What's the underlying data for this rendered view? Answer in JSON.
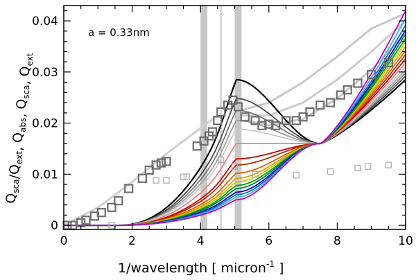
{
  "chart_data": {
    "type": "line",
    "title": "",
    "xlabel_main": "1/wavelength [ micron",
    "xlabel_sup": "-1",
    "xlabel_tail": " ]",
    "ylabel": "Q_sca/Q_ext, Q_abs, Q_sca, Q_ext",
    "ylabel_parts": [
      {
        "base": "Q",
        "sub": "sca"
      },
      {
        "text": "/"
      },
      {
        "base": "Q",
        "sub": "ext"
      },
      {
        "text": ",  "
      },
      {
        "base": "Q",
        "sub": "abs"
      },
      {
        "text": ",  "
      },
      {
        "base": "Q",
        "sub": "sca"
      },
      {
        "text": ",  "
      },
      {
        "base": "Q",
        "sub": "ext"
      }
    ],
    "annotation": "a = 0.33nm",
    "xlim": [
      0,
      10
    ],
    "ylim": [
      -0.0008,
      0.043
    ],
    "x_ticks": [
      0,
      2,
      4,
      6,
      8,
      10
    ],
    "x_tick_labels": [
      "0",
      "2",
      "4",
      "6",
      "8",
      "10"
    ],
    "y_ticks": [
      0,
      0.01,
      0.02,
      0.03,
      0.04
    ],
    "y_tick_labels": [
      "0",
      "0.01",
      "0.02",
      "0.03",
      "0.04"
    ],
    "x_minor_step": 0.5,
    "y_minor_step": 0.002,
    "grid": false,
    "legend": "none",
    "vertical_bands": [
      {
        "x0": 4.0,
        "x1": 4.2,
        "color": "#c8c8c8"
      },
      {
        "x0": 5.0,
        "x1": 5.2,
        "color": "#c8c8c8"
      }
    ],
    "vertical_lines": [
      {
        "x": 4.6,
        "color": "#b4b4b4"
      }
    ],
    "background_curves": [
      {
        "color": "#c8c8c8",
        "width": 3,
        "points": [
          [
            5.2,
            0.0225
          ],
          [
            6,
            0.024
          ],
          [
            7,
            0.028
          ],
          [
            8,
            0.033
          ],
          [
            9,
            0.0385
          ],
          [
            10,
            0.0415
          ]
        ]
      },
      {
        "color": "#cccccc",
        "width": 3,
        "points": [
          [
            5.2,
            0.0215
          ],
          [
            6,
            0.0215
          ],
          [
            7,
            0.024
          ],
          [
            8,
            0.0285
          ],
          [
            9,
            0.034
          ],
          [
            10,
            0.04
          ]
        ]
      },
      {
        "color": "#c8c8c8",
        "width": 3,
        "points": [
          [
            5.3,
            0.0205
          ],
          [
            6,
            0.0196
          ],
          [
            7,
            0.0208
          ],
          [
            8,
            0.0248
          ],
          [
            9,
            0.0305
          ],
          [
            10,
            0.0375
          ]
        ]
      },
      {
        "color": "#d0d0d0",
        "width": 3,
        "points": [
          [
            0,
            0
          ],
          [
            1,
            0.0035
          ],
          [
            2,
            0.0085
          ],
          [
            3,
            0.014
          ],
          [
            4,
            0.019
          ],
          [
            4.5,
            0.0215
          ]
        ]
      }
    ],
    "series_colors": [
      "#000000",
      "#4a4a4a",
      "#787878",
      "#a0a0a0",
      "#c8c8c8",
      "#f08080",
      "#cc0000",
      "#b03000",
      "#e06000",
      "#e0a000",
      "#c8c800",
      "#00a000",
      "#008040",
      "#0000cc",
      "#0070c0",
      "#40b0e0",
      "#c000c0"
    ],
    "series": [
      {
        "peak": 0.0285,
        "hi": 0.0285,
        "lowc": 0.01
      },
      {
        "peak": 0.0248,
        "hi": 0.0292,
        "lowc": 0.02
      },
      {
        "peak": 0.0225,
        "hi": 0.0298,
        "lowc": 0.03
      },
      {
        "peak": 0.0205,
        "hi": 0.0304,
        "lowc": 0.04
      },
      {
        "peak": 0.0188,
        "hi": 0.031,
        "lowc": 0.05
      },
      {
        "peak": 0.016,
        "hi": 0.0318,
        "lowc": 0.06
      },
      {
        "peak": 0.013,
        "hi": 0.0326,
        "lowc": 0.08
      },
      {
        "peak": 0.0118,
        "hi": 0.0334,
        "lowc": 0.1
      },
      {
        "peak": 0.0102,
        "hi": 0.0342,
        "lowc": 0.12
      },
      {
        "peak": 0.0092,
        "hi": 0.035,
        "lowc": 0.14
      },
      {
        "peak": 0.0085,
        "hi": 0.0358,
        "lowc": 0.16
      },
      {
        "peak": 0.0078,
        "hi": 0.0366,
        "lowc": 0.18
      },
      {
        "peak": 0.0072,
        "hi": 0.0374,
        "lowc": 0.2
      },
      {
        "peak": 0.0065,
        "hi": 0.0382,
        "lowc": 0.22
      },
      {
        "peak": 0.006,
        "hi": 0.0392,
        "lowc": 0.24
      },
      {
        "peak": 0.0055,
        "hi": 0.0405,
        "lowc": 0.26
      },
      {
        "peak": 0.005,
        "hi": 0.042,
        "lowc": 0.28
      }
    ],
    "observed_points_dark": [
      [
        0.1,
        0
      ],
      [
        0.25,
        0
      ],
      [
        0.5,
        0.0005
      ],
      [
        0.65,
        0.001
      ],
      [
        0.9,
        0.0018
      ],
      [
        1.1,
        0.0025
      ],
      [
        1.4,
        0.0035
      ],
      [
        1.6,
        0.0048
      ],
      [
        1.9,
        0.0072
      ],
      [
        2.3,
        0.0092
      ],
      [
        2.5,
        0.0108
      ],
      [
        2.7,
        0.0118
      ],
      [
        2.85,
        0.0122
      ],
      [
        3.0,
        0.0125
      ],
      [
        3.9,
        0.0155
      ],
      [
        4.1,
        0.0165
      ],
      [
        4.25,
        0.0175
      ],
      [
        4.35,
        0.0183
      ],
      [
        4.5,
        0.0205
      ],
      [
        4.6,
        0.0222
      ],
      [
        4.8,
        0.0235
      ],
      [
        4.95,
        0.0245
      ],
      [
        5.1,
        0.0232
      ],
      [
        5.3,
        0.0212
      ],
      [
        5.6,
        0.0205
      ],
      [
        5.8,
        0.0195
      ],
      [
        6.0,
        0.0198
      ],
      [
        6.2,
        0.0195
      ],
      [
        6.5,
        0.0205
      ],
      [
        6.8,
        0.0205
      ],
      [
        7.0,
        0.0212
      ],
      [
        7.2,
        0.0222
      ],
      [
        7.5,
        0.0235
      ],
      [
        7.8,
        0.024
      ],
      [
        8.1,
        0.0255
      ],
      [
        8.3,
        0.0265
      ],
      [
        8.6,
        0.0278
      ],
      [
        9.0,
        0.0295
      ],
      [
        9.5,
        0.0318
      ]
    ],
    "observed_points_light": [
      [
        2.7,
        0.0088
      ],
      [
        3.0,
        0.0088
      ],
      [
        3.5,
        0.0095
      ],
      [
        3.6,
        0.0095
      ],
      [
        4.6,
        0.0128
      ],
      [
        5.0,
        0.0115
      ],
      [
        5.6,
        0.01
      ],
      [
        6.8,
        0.0098
      ],
      [
        7.8,
        0.0105
      ],
      [
        8.6,
        0.0112
      ],
      [
        8.9,
        0.0115
      ],
      [
        9.5,
        0.0118
      ],
      [
        1.4,
        0
      ]
    ]
  }
}
